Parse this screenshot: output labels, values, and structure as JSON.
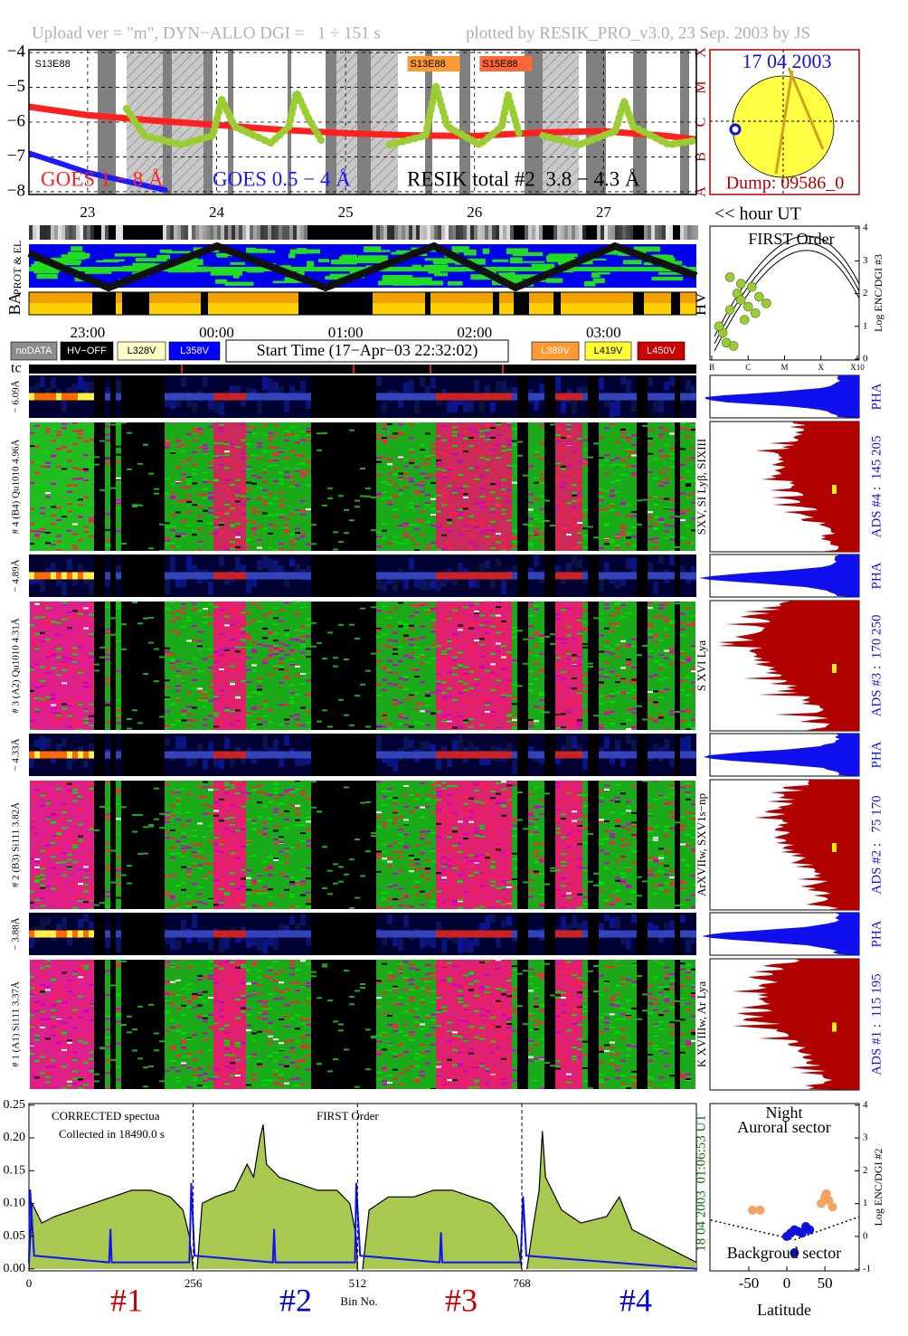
{
  "header": {
    "left": "Upload ver = \"m\", DYN−ALLO DGI =   1 ÷ 151 s",
    "right": "plotted by RESIK_PRO_v3.0, 23 Sep. 2003 by JS"
  },
  "sun": {
    "date": "17 04 2003",
    "dump": "Dump: 09586_0"
  },
  "timeline": {
    "hour_label": "<< hour UT",
    "clock_labels": [
      "23:00",
      "00:00",
      "01:00",
      "02:00",
      "03:00"
    ],
    "prot_label": "PROT & EL",
    "ba_label": "BA",
    "hv_label": "HV",
    "tc_label": "tc"
  },
  "legend_boxes": [
    {
      "label": "noDATA",
      "color": "#8c8c8c",
      "text_color": "#ffffff"
    },
    {
      "label": "HV−OFF",
      "color": "#000000",
      "text_color": "#ffffff"
    },
    {
      "label": "L328V",
      "color": "#ffffc8",
      "text_color": "#000000"
    },
    {
      "label": "L358V",
      "color": "#0000ff",
      "text_color": "#ffffff"
    },
    {
      "label": "L389V",
      "color": "#ff9933",
      "text_color": "#ffffff"
    },
    {
      "label": "L419V",
      "color": "#ffff33",
      "text_color": "#000000"
    },
    {
      "label": "L450V",
      "color": "#cc0000",
      "text_color": "#ffffff"
    }
  ],
  "start_time": "Start Time (17−Apr−03 22:32:02)",
  "panels": [
    {
      "pha_label": "− 6.09Å",
      "label": "# 4 (B4) Qu1010 4.96Å",
      "lines": "SXV, SI Lyβ, SIXIII",
      "pha": "PHA",
      "ads": "ADS #4 :  145 205"
    },
    {
      "pha_label": "− 4.89Å",
      "label": "# 3 (A2) Qu1010 4.31Å",
      "lines": "S XVI Lya",
      "pha": "PHA",
      "ads": "ADS #3 :  170 250"
    },
    {
      "pha_label": "− 4.33Å",
      "label": "# 2 (B3) Si111 3.82Å",
      "lines": "ArXVIIw, SXV1s−np",
      "pha": "PHA",
      "ads": "ADS #2 :   75 170"
    },
    {
      "pha_label": "− 3.88Å",
      "label": "# 1 (A1) Si111 3.37Å",
      "lines": "K XVIIIw, Ar Lya",
      "pha": "PHA",
      "ads": "ADS #1 :  115 195"
    }
  ],
  "chart_data": [
    {
      "type": "line",
      "xlim": [
        22.545,
        27.72
      ],
      "xticks": [
        23,
        24,
        25,
        26,
        27
      ],
      "ylim": [
        -8.08,
        -3.92
      ],
      "yticks": [
        {
          "value": -4,
          "label": "−4"
        },
        {
          "value": -5,
          "label": "−5"
        },
        {
          "value": -6,
          "label": "−6"
        },
        {
          "value": -7,
          "label": "−7"
        },
        {
          "value": -8,
          "label": "−8"
        }
      ],
      "class_ticks": [
        {
          "value": -8,
          "label": "A"
        },
        {
          "value": -7,
          "label": "B"
        },
        {
          "value": -6,
          "label": "C"
        },
        {
          "value": -5,
          "label": "M"
        },
        {
          "value": -4,
          "label": "X"
        }
      ],
      "grid": true,
      "flare_labels": [
        {
          "text": "S13E88",
          "x": 22.57,
          "color": "#ffffff"
        },
        {
          "text": "S13E88",
          "x": 25.48,
          "color": "#ff9933"
        },
        {
          "text": "S15E88",
          "x": 26.04,
          "color": "#ff6633"
        }
      ],
      "series": [
        {
          "name": "GOES 1 − 8 Å",
          "color": "#ff2020",
          "x": [
            22.55,
            23.0,
            23.5,
            24.0,
            24.5,
            25.0,
            25.5,
            26.0,
            26.5,
            27.0,
            27.5,
            27.72
          ],
          "values": [
            -5.56,
            -5.8,
            -5.95,
            -6.08,
            -6.22,
            -6.32,
            -6.38,
            -6.4,
            -6.3,
            -6.26,
            -6.4,
            -6.5
          ]
        },
        {
          "name": "GOES 0.5 − 4 Å",
          "color": "#1a1aff",
          "x": [
            22.55,
            22.8,
            23.0,
            23.3,
            23.6
          ],
          "values": [
            -6.9,
            -7.2,
            -7.45,
            -7.7,
            -7.95
          ]
        },
        {
          "name": "RESIK total #2  3.8 − 4.3 Å",
          "color": "#9acd32",
          "x": [
            23.3,
            23.44,
            23.72,
            23.97,
            24.04,
            24.14,
            24.42,
            24.56,
            24.62,
            24.71,
            24.81,
            25.0,
            25.34,
            25.62,
            25.7,
            25.79,
            26.04,
            26.21,
            26.26,
            26.35,
            26.45,
            26.53,
            26.81,
            27.09,
            27.16,
            27.23,
            27.51,
            27.72
          ],
          "values": [
            -5.61,
            -6.39,
            -6.65,
            -6.39,
            -5.35,
            -6.13,
            -6.6,
            -6.13,
            -5.14,
            -5.87,
            -6.52,
            null,
            -6.65,
            -6.39,
            -4.96,
            -6.13,
            -6.65,
            -6.13,
            -5.22,
            -6.39,
            null,
            -6.39,
            -6.65,
            -6.26,
            -5.4,
            -6.13,
            -6.65,
            -6.52
          ]
        }
      ]
    },
    {
      "type": "scatter",
      "title": "FIRST Order",
      "y_label": "Log ENC/DGI #3",
      "xlim": [
        -7.05,
        -2.95
      ],
      "xticks": [
        {
          "value": -7,
          "label": "B"
        },
        {
          "value": -6,
          "label": "C"
        },
        {
          "value": -5,
          "label": "M"
        },
        {
          "value": -4,
          "label": "X"
        },
        {
          "value": -3,
          "label": "X10"
        }
      ],
      "ylim": [
        -0.03,
        4.06
      ],
      "yticks": [
        0,
        1,
        2,
        3,
        4
      ],
      "series": [
        {
          "color": "#9acd32",
          "x": [
            -6.5,
            -6.3,
            -6.2,
            -6.0,
            -5.9,
            -5.7,
            -5.5,
            -6.7,
            -6.6,
            -6.4,
            -6.1,
            -5.8,
            -6.5,
            -6.2,
            -6.8
          ],
          "values": [
            1.5,
            2.0,
            1.8,
            1.6,
            2.2,
            1.9,
            1.7,
            0.8,
            0.5,
            0.4,
            1.2,
            1.4,
            2.5,
            2.3,
            1.0
          ]
        }
      ]
    },
    {
      "type": "area",
      "notes": [
        "CORRECTED spectua",
        "Collected in 18490.0 s",
        "FIRST Order"
      ],
      "x_label": "Bin No.",
      "side_labels": [
        "18 04 2003",
        "01:06:53 UT"
      ],
      "channels": [
        {
          "label": "#1",
          "color": "#cc0000"
        },
        {
          "label": "#2",
          "color": "#0000cc"
        },
        {
          "label": "#3",
          "color": "#cc0000"
        },
        {
          "label": "#4",
          "color": "#0000cc"
        }
      ],
      "xlim": [
        0,
        1040
      ],
      "xticks": [
        0,
        256,
        512,
        768
      ],
      "ylim": [
        -0.003,
        0.2525
      ],
      "yticks": [
        {
          "value": 0,
          "label": "0.00"
        },
        {
          "value": 0.05,
          "label": "0.05"
        },
        {
          "value": 0.1,
          "label": "0.10"
        },
        {
          "value": 0.15,
          "label": "0.15"
        },
        {
          "value": 0.2,
          "label": "0.20"
        },
        {
          "value": 0.25,
          "label": "0.25"
        }
      ],
      "series": [
        {
          "color": "#000000",
          "fill": "#a8c850",
          "x": [
            0,
            5,
            20,
            40,
            70,
            100,
            130,
            160,
            190,
            220,
            240,
            250,
            256,
            259,
            262,
            270,
            290,
            320,
            340,
            350,
            360,
            365,
            370,
            390,
            420,
            450,
            480,
            500,
            510,
            512,
            516,
            520,
            530,
            560,
            600,
            630,
            660,
            690,
            720,
            740,
            760,
            768,
            772,
            776,
            785,
            795,
            800,
            805,
            830,
            860,
            900,
            920,
            940,
            980,
            1020,
            1040
          ],
          "values": [
            0.0,
            0.1,
            0.07,
            0.08,
            0.09,
            0.1,
            0.11,
            0.12,
            0.12,
            0.11,
            0.09,
            0.05,
            0.0,
            null,
            0.0,
            0.1,
            0.11,
            0.12,
            0.16,
            0.14,
            0.2,
            0.22,
            0.16,
            0.14,
            0.13,
            0.12,
            0.12,
            0.1,
            0.05,
            0.0,
            null,
            0.0,
            0.09,
            0.11,
            0.11,
            0.12,
            0.12,
            0.11,
            0.1,
            0.08,
            0.05,
            0.0,
            null,
            0.0,
            0.06,
            0.12,
            0.21,
            0.14,
            0.09,
            0.07,
            0.08,
            0.11,
            0.06,
            0.04,
            0.02,
            0.01
          ]
        },
        {
          "color": "#1010ff",
          "x": [
            0,
            2,
            8,
            125,
            127,
            129,
            250,
            253,
            258,
            380,
            382,
            384,
            508,
            510,
            516,
            640,
            642,
            644,
            766,
            770,
            775,
            1040
          ],
          "values": [
            0.01,
            0.12,
            0.02,
            0.01,
            0.06,
            0.01,
            0.01,
            0.13,
            0.02,
            0.01,
            0.06,
            0.01,
            0.01,
            0.13,
            0.02,
            0.01,
            0.055,
            0.01,
            0.01,
            0.11,
            0.02,
            0.0
          ]
        }
      ]
    },
    {
      "type": "scatter",
      "notes": [
        "Night",
        "Auroral sector",
        "Backgroud sector"
      ],
      "x_label": "Latitude",
      "y_label": "Log ENC/DGI #2",
      "xlim": [
        -101,
        95
      ],
      "xticks": [
        -50,
        0,
        50
      ],
      "ylim": [
        -1.05,
        4.05
      ],
      "yticks": [
        -1,
        0,
        1,
        2,
        3,
        4
      ],
      "series": [
        {
          "color": "#f4a460",
          "x": [
            -45,
            -35,
            45,
            50,
            55,
            60,
            52
          ],
          "values": [
            0.8,
            0.8,
            1.0,
            1.2,
            1.1,
            0.9,
            1.3
          ]
        },
        {
          "color": "#1010dd",
          "x": [
            0,
            5,
            10,
            15,
            20,
            25,
            10,
            30
          ],
          "values": [
            0.0,
            0.1,
            0.2,
            0.15,
            0.1,
            0.3,
            -0.5,
            0.2
          ]
        }
      ]
    }
  ]
}
